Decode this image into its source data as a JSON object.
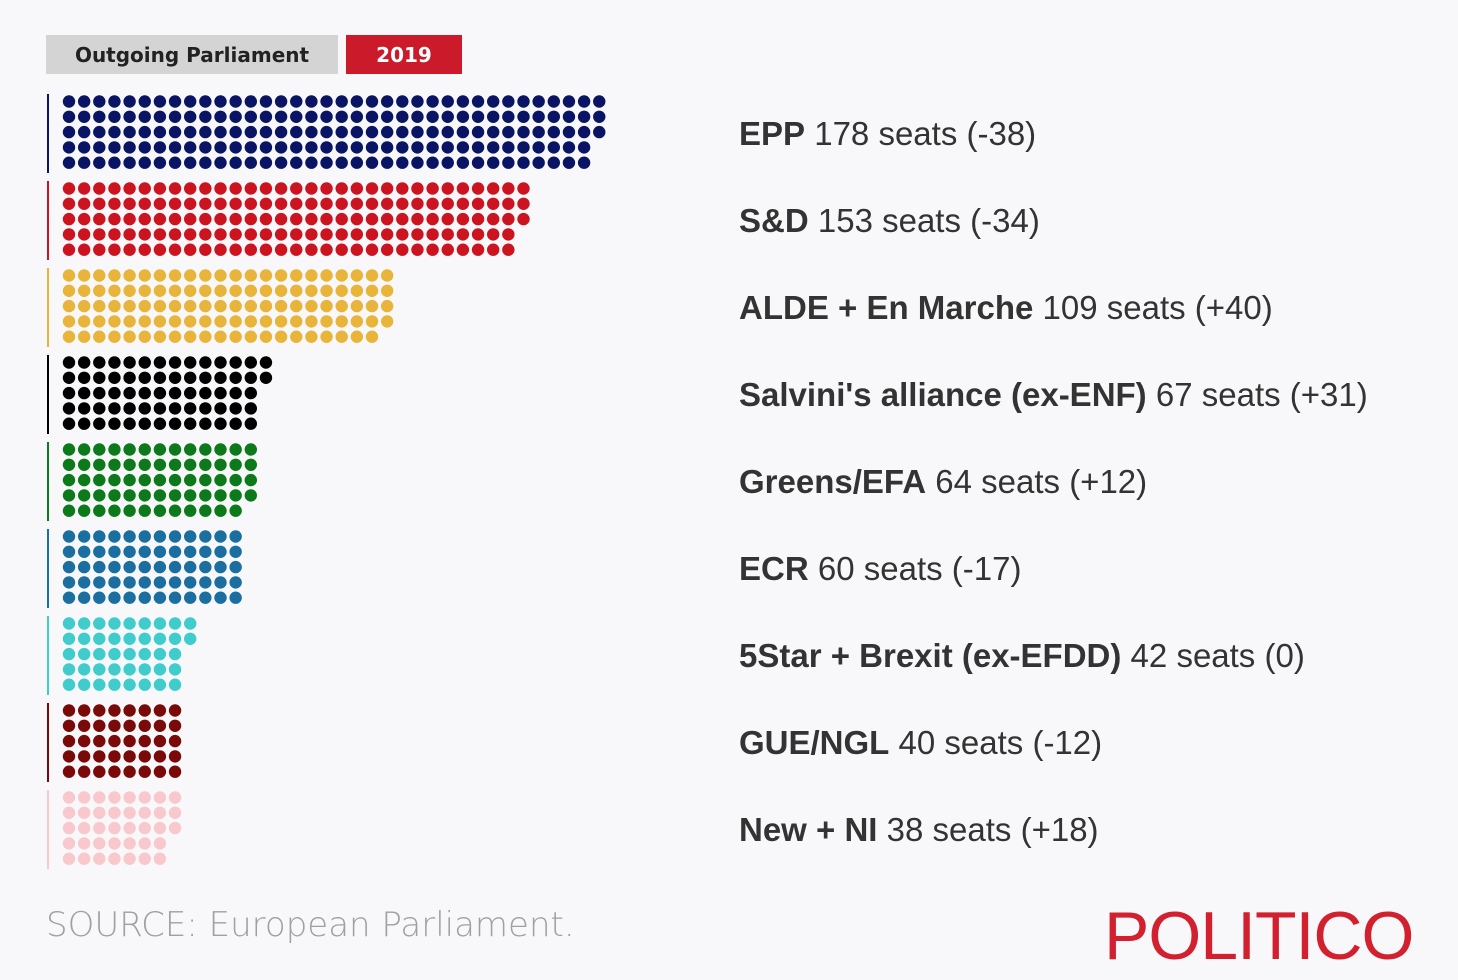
{
  "tabs": [
    {
      "label": "Outgoing Parliament"
    },
    {
      "label": "2019"
    }
  ],
  "chart_data": {
    "type": "waffle",
    "title": "",
    "rows_per_group": 5,
    "series": [
      {
        "party": "EPP",
        "seats": 178,
        "change": "(-38)",
        "color": "#0a1464"
      },
      {
        "party": "S&D",
        "seats": 153,
        "change": "(-34)",
        "color": "#cc1420"
      },
      {
        "party": "ALDE + En Marche",
        "seats": 109,
        "change": "(+40)",
        "color": "#e8b43a"
      },
      {
        "party": "Salvini's alliance (ex-ENF)",
        "seats": 67,
        "change": "(+31)",
        "color": "#000000"
      },
      {
        "party": "Greens/EFA",
        "seats": 64,
        "change": "(+12)",
        "color": "#0c7a1a"
      },
      {
        "party": "ECR",
        "seats": 60,
        "change": "(-17)",
        "color": "#1a6fa0"
      },
      {
        "party": "5Star + Brexit (ex-EFDD)",
        "seats": 42,
        "change": "(0)",
        "color": "#40cccc"
      },
      {
        "party": "GUE/NGL",
        "seats": 40,
        "change": "(-12)",
        "color": "#7a0a0a"
      },
      {
        "party": "New + NI",
        "seats": 38,
        "change": "(+18)",
        "color": "#f9c8cc"
      }
    ],
    "seats_word": "seats"
  },
  "footer": {
    "source": "SOURCE: European Parliament.",
    "logo": "POLITICO"
  }
}
